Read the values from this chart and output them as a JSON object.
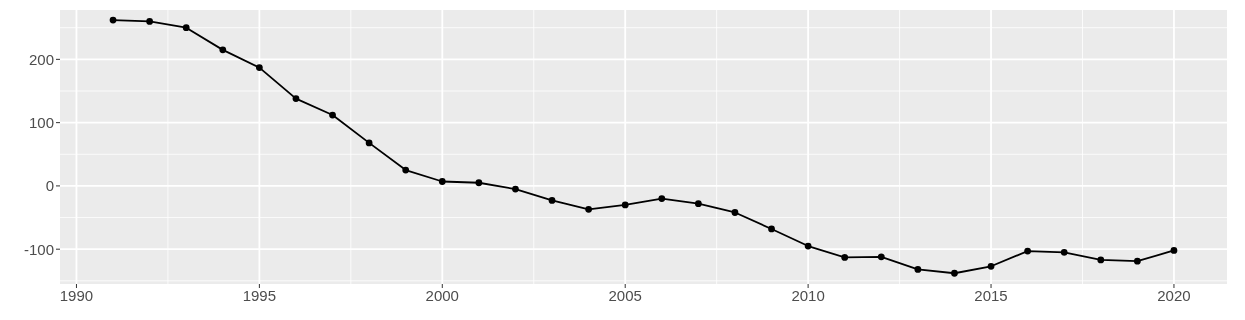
{
  "chart_data": {
    "type": "line",
    "x": [
      1991,
      1992,
      1993,
      1994,
      1995,
      1996,
      1997,
      1998,
      1999,
      2000,
      2001,
      2002,
      2003,
      2004,
      2005,
      2006,
      2007,
      2008,
      2009,
      2010,
      2011,
      2012,
      2013,
      2014,
      2015,
      2016,
      2017,
      2018,
      2019,
      2020
    ],
    "values": [
      262,
      260,
      250,
      215,
      187,
      138,
      112,
      68,
      25,
      7,
      5,
      -5,
      -23,
      -37,
      -30,
      -20,
      -28,
      -42,
      -68,
      -95,
      -113,
      -112,
      -132,
      -138,
      -127,
      -103,
      -105,
      -117,
      -119,
      -102
    ],
    "color": "#000000",
    "marker": "circle",
    "line_style": "solid",
    "grid": true,
    "xlim": [
      1989.55,
      2021.45
    ],
    "xticks": [
      1990,
      1995,
      2000,
      2005,
      2010,
      2015,
      2020
    ],
    "ylim": [
      -155,
      278
    ],
    "yticks": [
      -100,
      0,
      100,
      200
    ]
  }
}
